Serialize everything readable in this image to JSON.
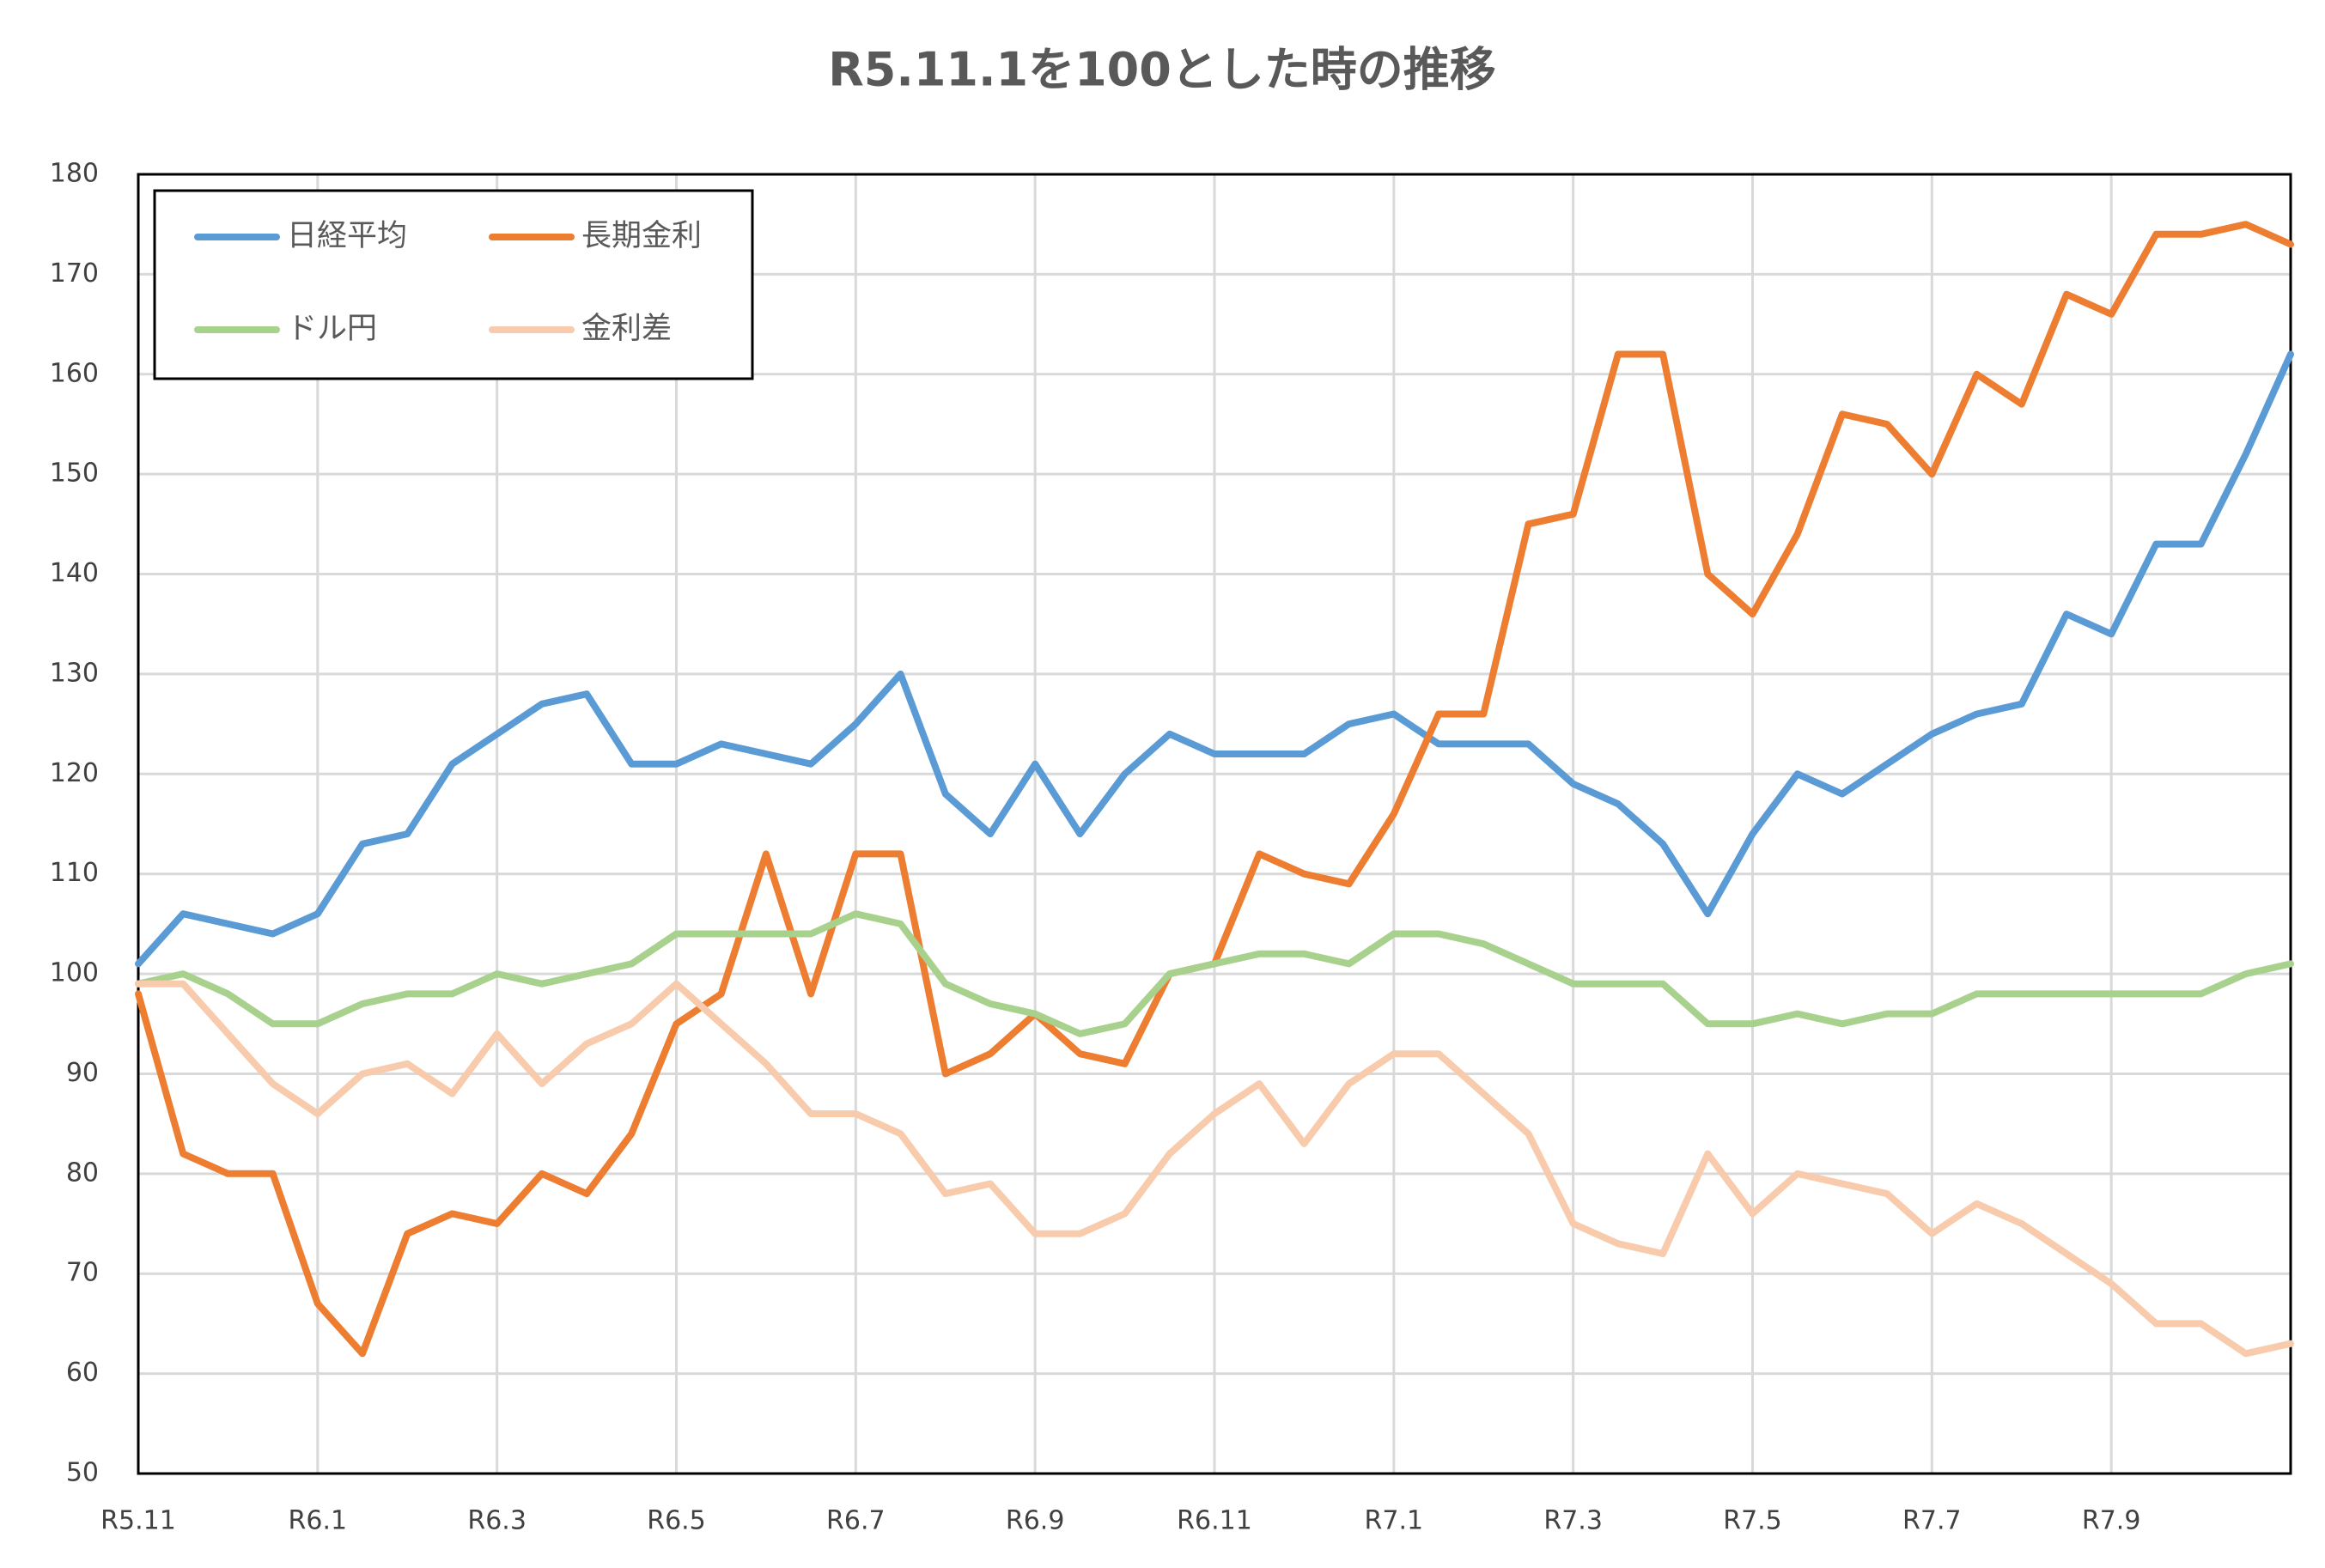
{
  "chart_data": {
    "type": "line",
    "title": "R5.11.1を100とした時の推移",
    "categories": [
      "R5.11",
      null,
      null,
      null,
      "R6.1",
      null,
      null,
      null,
      "R6.3",
      null,
      null,
      null,
      "R6.5",
      null,
      null,
      null,
      "R6.7",
      null,
      null,
      null,
      "R6.9",
      null,
      null,
      null,
      "R6.11",
      null,
      null,
      null,
      "R7.1",
      null,
      null,
      null,
      "R7.3",
      null,
      null,
      null,
      "R7.5",
      null,
      null,
      null,
      "R7.7",
      null,
      null,
      null,
      "R7.9",
      null,
      null,
      null,
      null
    ],
    "series": [
      {
        "name": "日経平均",
        "color": "#5b9bd5",
        "values": [
          101,
          106,
          105,
          104,
          106,
          113,
          114,
          121,
          124,
          127,
          128,
          121,
          121,
          123,
          122,
          121,
          125,
          130,
          118,
          114,
          121,
          114,
          120,
          124,
          122,
          122,
          122,
          125,
          126,
          123,
          123,
          123,
          119,
          117,
          113,
          106,
          114,
          120,
          118,
          121,
          124,
          126,
          127,
          136,
          134,
          143,
          143,
          152,
          162
        ]
      },
      {
        "name": "長期金利",
        "color": "#ed7d31",
        "values": [
          98,
          82,
          80,
          80,
          67,
          62,
          74,
          76,
          75,
          80,
          78,
          84,
          95,
          98,
          112,
          98,
          112,
          112,
          90,
          92,
          96,
          92,
          91,
          100,
          101,
          112,
          110,
          109,
          116,
          126,
          126,
          145,
          146,
          162,
          162,
          140,
          136,
          144,
          156,
          155,
          150,
          160,
          157,
          168,
          166,
          174,
          174,
          175,
          173
        ]
      },
      {
        "name": "ドル円",
        "color": "#a9d18e",
        "values": [
          99,
          100,
          98,
          95,
          95,
          97,
          98,
          98,
          100,
          99,
          100,
          101,
          104,
          104,
          104,
          104,
          106,
          105,
          99,
          97,
          96,
          94,
          95,
          100,
          101,
          102,
          102,
          101,
          104,
          104,
          103,
          101,
          99,
          99,
          99,
          95,
          95,
          96,
          95,
          96,
          96,
          98,
          98,
          98,
          98,
          98,
          98,
          100,
          101
        ]
      },
      {
        "name": "金利差",
        "color": "#f8cbad",
        "values": [
          99,
          99,
          94,
          89,
          86,
          90,
          91,
          88,
          94,
          89,
          93,
          95,
          99,
          95,
          91,
          86,
          86,
          84,
          78,
          79,
          74,
          74,
          76,
          82,
          86,
          89,
          83,
          89,
          92,
          92,
          88,
          84,
          75,
          73,
          72,
          82,
          76,
          80,
          79,
          78,
          74,
          77,
          75,
          72,
          69,
          65,
          65,
          62,
          63
        ]
      }
    ],
    "ylim": [
      50,
      180
    ],
    "yticks": [
      50,
      60,
      70,
      80,
      90,
      100,
      110,
      120,
      130,
      140,
      150,
      160,
      170,
      180
    ],
    "grid": true,
    "legend": "upper left"
  }
}
